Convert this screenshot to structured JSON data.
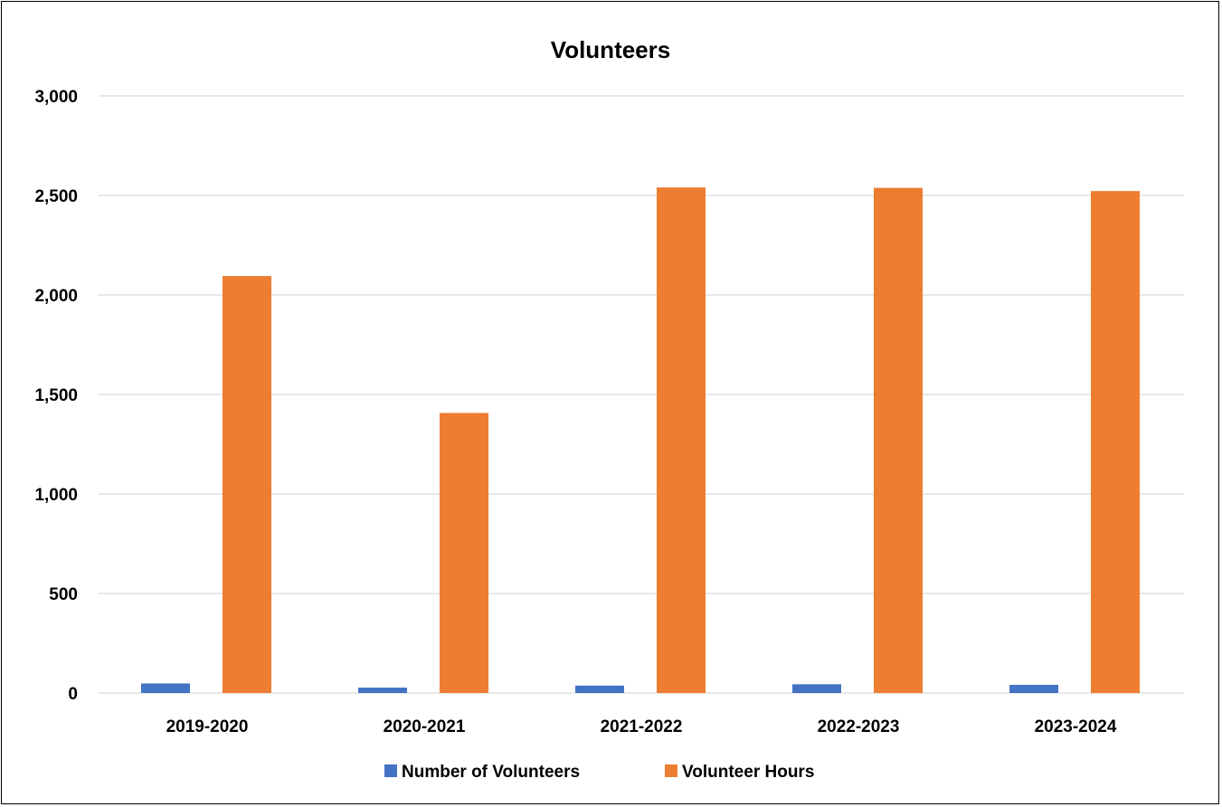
{
  "chart_data": {
    "type": "bar",
    "title": "Volunteers",
    "xlabel": "",
    "ylabel": "",
    "categories": [
      "2019-2020",
      "2020-2021",
      "2021-2022",
      "2022-2023",
      "2023-2024"
    ],
    "series": [
      {
        "name": "Number of Volunteers",
        "color": "#4472c4",
        "values": [
          48,
          27,
          37,
          44,
          41
        ]
      },
      {
        "name": "Volunteer Hours",
        "color": "#ed7d31",
        "values": [
          2095,
          1407,
          2540,
          2538,
          2522
        ]
      }
    ],
    "ylim": [
      0,
      3000
    ],
    "yticks": [
      0,
      500,
      1000,
      1500,
      2000,
      2500,
      3000
    ],
    "ytick_labels": [
      "0",
      "500",
      "1,000",
      "1,500",
      "2,000",
      "2,500",
      "3,000"
    ],
    "grid": true,
    "legend_position": "bottom"
  }
}
